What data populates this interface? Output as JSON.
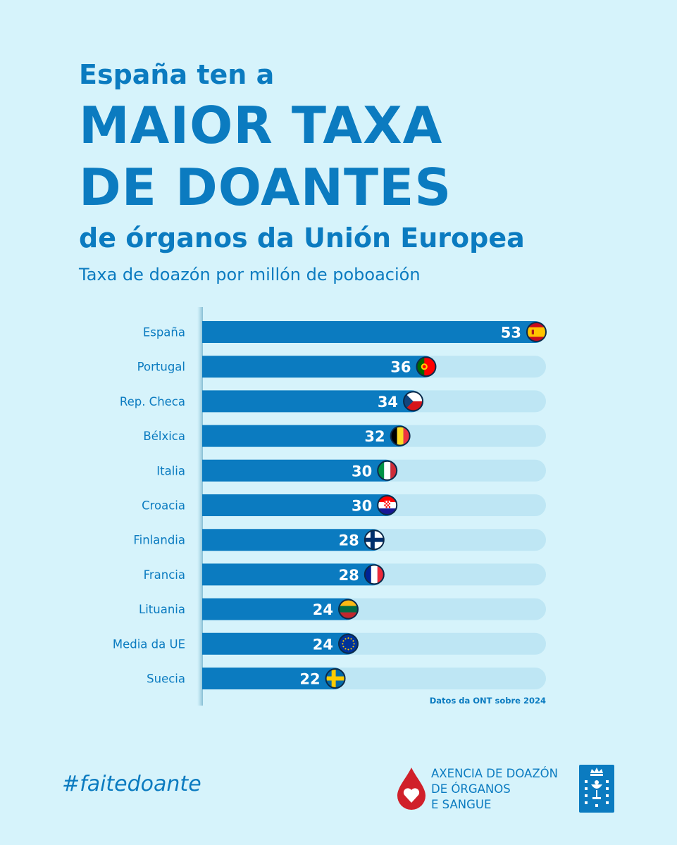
{
  "heading": {
    "line1": "España ten a",
    "line2": "MAIOR TAXA",
    "line3": "DE DOANTES",
    "line4": "de órganos da Unión Europea"
  },
  "chart_data": {
    "type": "bar",
    "orientation": "horizontal",
    "title": "Taxa de doazón por millón de poboación",
    "categories": [
      "España",
      "Portugal",
      "Rep. Checa",
      "Bélxica",
      "Italia",
      "Croacia",
      "Finlandia",
      "Francia",
      "Lituania",
      "Media da UE",
      "Suecia"
    ],
    "values": [
      53,
      36,
      34,
      32,
      30,
      30,
      28,
      28,
      24,
      24,
      22
    ],
    "xlim": [
      0,
      53
    ],
    "grid": false,
    "flags": [
      "spain-flag-icon",
      "portugal-flag-icon",
      "czech-flag-icon",
      "belgium-flag-icon",
      "italy-flag-icon",
      "croatia-flag-icon",
      "finland-flag-icon",
      "france-flag-icon",
      "lithuania-flag-icon",
      "eu-flag-icon",
      "sweden-flag-icon"
    ],
    "source": "Datos da ONT sobre 2024"
  },
  "colors": {
    "background": "#d6f3fb",
    "bar": "#0b7bc0",
    "track": "#bee6f4",
    "text": "#0b7bc0",
    "logo_red": "#d0202a"
  },
  "footer": {
    "hashtag": "#faitedoante",
    "org_line1": "AXENCIA DE DOAZÓN",
    "org_line2": "DE ÓRGANOS",
    "org_line3": "E SANGUE"
  }
}
